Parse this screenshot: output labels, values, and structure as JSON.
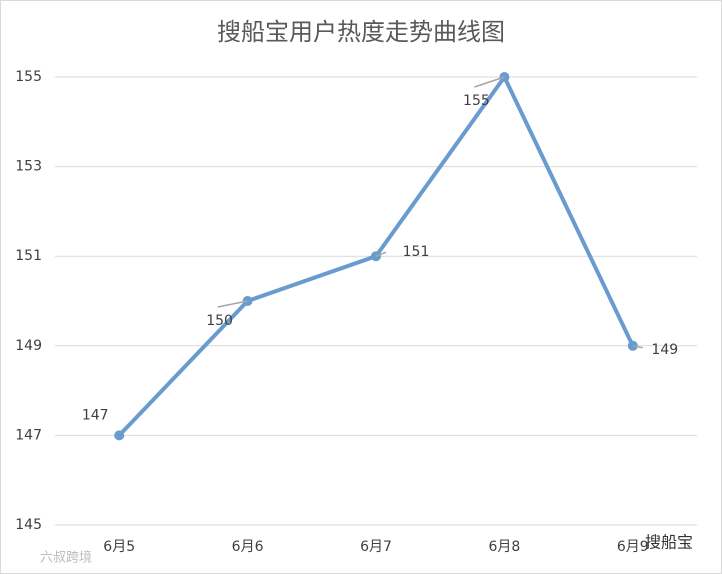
{
  "chart_data": {
    "type": "line",
    "title": "搜船宝用户热度走势曲线图",
    "categories": [
      "6月5",
      "6月6",
      "6月7",
      "6月8",
      "6月9"
    ],
    "series": [
      {
        "name": "搜船宝用户热度",
        "color": "#6a9bcf",
        "values": [
          147,
          150,
          151,
          155,
          149
        ]
      }
    ],
    "ylim": [
      145,
      155
    ],
    "yticks": [
      145,
      147,
      149,
      151,
      153,
      155
    ],
    "grid": true
  },
  "watermarks": [
    "六叔跨境",
    "搜船宝"
  ]
}
